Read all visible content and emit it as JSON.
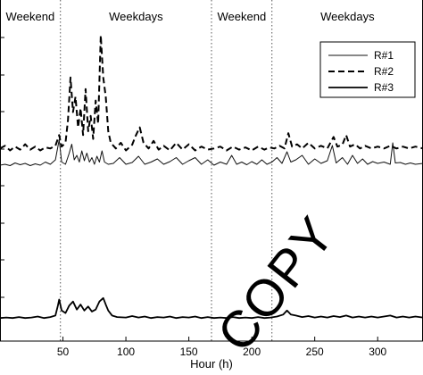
{
  "chart_data": {
    "type": "line",
    "title": "",
    "xlabel": "Hour (h)",
    "ylabel": "",
    "xlim": [
      0,
      336
    ],
    "xticks": [
      50,
      100,
      150,
      200,
      250,
      300
    ],
    "grid": false,
    "legend_position": "top-right",
    "period_boundaries": [
      48,
      168,
      216
    ],
    "period_labels": [
      {
        "text": "Weekend",
        "x_from": 0,
        "x_to": 48
      },
      {
        "text": "Weekdays",
        "x_from": 48,
        "x_to": 168
      },
      {
        "text": "Weekend",
        "x_from": 168,
        "x_to": 216
      },
      {
        "text": "Weekdays",
        "x_from": 216,
        "x_to": 336
      }
    ],
    "series": [
      {
        "name": "R#1",
        "style": "thin-solid",
        "points": [
          [
            0,
            0.28
          ],
          [
            4,
            0.3
          ],
          [
            8,
            0.27
          ],
          [
            12,
            0.33
          ],
          [
            16,
            0.29
          ],
          [
            20,
            0.32
          ],
          [
            24,
            0.27
          ],
          [
            28,
            0.31
          ],
          [
            32,
            0.28
          ],
          [
            36,
            0.35
          ],
          [
            40,
            0.3
          ],
          [
            44,
            0.4
          ],
          [
            47,
            0.85
          ],
          [
            49,
            0.35
          ],
          [
            52,
            0.3
          ],
          [
            55,
            0.55
          ],
          [
            57,
            0.75
          ],
          [
            59,
            0.4
          ],
          [
            61,
            0.5
          ],
          [
            63,
            0.35
          ],
          [
            65,
            0.6
          ],
          [
            67,
            0.38
          ],
          [
            69,
            0.55
          ],
          [
            71,
            0.35
          ],
          [
            73,
            0.45
          ],
          [
            75,
            0.3
          ],
          [
            77,
            0.48
          ],
          [
            79,
            0.35
          ],
          [
            81,
            0.6
          ],
          [
            83,
            0.35
          ],
          [
            86,
            0.3
          ],
          [
            90,
            0.32
          ],
          [
            95,
            0.45
          ],
          [
            100,
            0.3
          ],
          [
            105,
            0.34
          ],
          [
            110,
            0.48
          ],
          [
            115,
            0.3
          ],
          [
            120,
            0.35
          ],
          [
            125,
            0.42
          ],
          [
            130,
            0.3
          ],
          [
            135,
            0.36
          ],
          [
            140,
            0.45
          ],
          [
            145,
            0.3
          ],
          [
            150,
            0.38
          ],
          [
            155,
            0.45
          ],
          [
            160,
            0.3
          ],
          [
            165,
            0.4
          ],
          [
            170,
            0.28
          ],
          [
            175,
            0.35
          ],
          [
            180,
            0.3
          ],
          [
            184,
            0.5
          ],
          [
            188,
            0.3
          ],
          [
            192,
            0.35
          ],
          [
            196,
            0.29
          ],
          [
            200,
            0.36
          ],
          [
            204,
            0.3
          ],
          [
            208,
            0.4
          ],
          [
            212,
            0.3
          ],
          [
            216,
            0.35
          ],
          [
            220,
            0.45
          ],
          [
            224,
            0.32
          ],
          [
            228,
            0.58
          ],
          [
            231,
            0.35
          ],
          [
            235,
            0.4
          ],
          [
            240,
            0.5
          ],
          [
            245,
            0.3
          ],
          [
            250,
            0.42
          ],
          [
            255,
            0.32
          ],
          [
            260,
            0.38
          ],
          [
            264,
            0.72
          ],
          [
            267,
            0.33
          ],
          [
            272,
            0.45
          ],
          [
            276,
            0.3
          ],
          [
            280,
            0.5
          ],
          [
            284,
            0.32
          ],
          [
            288,
            0.42
          ],
          [
            292,
            0.3
          ],
          [
            296,
            0.36
          ],
          [
            300,
            0.32
          ],
          [
            305,
            0.35
          ],
          [
            310,
            0.3
          ],
          [
            312,
            0.78
          ],
          [
            314,
            0.33
          ],
          [
            318,
            0.34
          ],
          [
            322,
            0.3
          ],
          [
            326,
            0.33
          ],
          [
            330,
            0.3
          ],
          [
            336,
            0.32
          ]
        ]
      },
      {
        "name": "R#2",
        "style": "dashed",
        "points": [
          [
            0,
            0.55
          ],
          [
            4,
            0.62
          ],
          [
            8,
            0.5
          ],
          [
            12,
            0.6
          ],
          [
            16,
            0.52
          ],
          [
            20,
            0.66
          ],
          [
            24,
            0.52
          ],
          [
            28,
            0.6
          ],
          [
            32,
            0.5
          ],
          [
            36,
            0.58
          ],
          [
            40,
            0.55
          ],
          [
            44,
            0.62
          ],
          [
            47,
            0.9
          ],
          [
            49,
            0.6
          ],
          [
            52,
            0.7
          ],
          [
            54,
            1.3
          ],
          [
            56,
            2.4
          ],
          [
            58,
            1.5
          ],
          [
            60,
            1.9
          ],
          [
            62,
            1.1
          ],
          [
            64,
            1.6
          ],
          [
            66,
            0.9
          ],
          [
            68,
            2.1
          ],
          [
            70,
            1.0
          ],
          [
            72,
            1.4
          ],
          [
            74,
            0.8
          ],
          [
            76,
            1.8
          ],
          [
            78,
            1.2
          ],
          [
            80,
            3.5
          ],
          [
            82,
            2.4
          ],
          [
            84,
            1.9
          ],
          [
            86,
            1.0
          ],
          [
            88,
            0.7
          ],
          [
            92,
            0.55
          ],
          [
            96,
            0.7
          ],
          [
            100,
            0.5
          ],
          [
            105,
            0.65
          ],
          [
            108,
            0.9
          ],
          [
            111,
            1.1
          ],
          [
            114,
            0.7
          ],
          [
            118,
            0.55
          ],
          [
            122,
            0.75
          ],
          [
            126,
            0.52
          ],
          [
            130,
            0.62
          ],
          [
            135,
            0.5
          ],
          [
            140,
            0.7
          ],
          [
            145,
            0.52
          ],
          [
            150,
            0.66
          ],
          [
            155,
            0.5
          ],
          [
            160,
            0.6
          ],
          [
            165,
            0.52
          ],
          [
            170,
            0.55
          ],
          [
            175,
            0.6
          ],
          [
            180,
            0.5
          ],
          [
            185,
            0.6
          ],
          [
            190,
            0.52
          ],
          [
            195,
            0.58
          ],
          [
            200,
            0.5
          ],
          [
            205,
            0.6
          ],
          [
            210,
            0.52
          ],
          [
            214,
            0.58
          ],
          [
            218,
            0.55
          ],
          [
            222,
            0.62
          ],
          [
            226,
            0.55
          ],
          [
            229,
            0.95
          ],
          [
            232,
            0.6
          ],
          [
            236,
            0.66
          ],
          [
            240,
            0.55
          ],
          [
            245,
            0.7
          ],
          [
            250,
            0.55
          ],
          [
            255,
            0.62
          ],
          [
            260,
            0.55
          ],
          [
            265,
            0.85
          ],
          [
            268,
            0.6
          ],
          [
            272,
            0.65
          ],
          [
            275,
            0.9
          ],
          [
            278,
            0.6
          ],
          [
            282,
            0.66
          ],
          [
            286,
            0.55
          ],
          [
            290,
            0.62
          ],
          [
            295,
            0.55
          ],
          [
            300,
            0.6
          ],
          [
            305,
            0.55
          ],
          [
            310,
            0.62
          ],
          [
            315,
            0.55
          ],
          [
            320,
            0.6
          ],
          [
            325,
            0.55
          ],
          [
            330,
            0.6
          ],
          [
            336,
            0.55
          ]
        ]
      },
      {
        "name": "R#3",
        "style": "thick-solid",
        "points": [
          [
            0,
            0.05
          ],
          [
            5,
            0.06
          ],
          [
            10,
            0.05
          ],
          [
            15,
            0.07
          ],
          [
            20,
            0.05
          ],
          [
            25,
            0.06
          ],
          [
            30,
            0.08
          ],
          [
            35,
            0.05
          ],
          [
            40,
            0.07
          ],
          [
            44,
            0.1
          ],
          [
            46,
            0.3
          ],
          [
            47,
            0.42
          ],
          [
            49,
            0.2
          ],
          [
            52,
            0.15
          ],
          [
            55,
            0.3
          ],
          [
            58,
            0.38
          ],
          [
            61,
            0.22
          ],
          [
            64,
            0.32
          ],
          [
            67,
            0.2
          ],
          [
            70,
            0.28
          ],
          [
            73,
            0.18
          ],
          [
            76,
            0.22
          ],
          [
            79,
            0.38
          ],
          [
            82,
            0.45
          ],
          [
            84,
            0.32
          ],
          [
            86,
            0.2
          ],
          [
            89,
            0.1
          ],
          [
            93,
            0.07
          ],
          [
            100,
            0.06
          ],
          [
            105,
            0.09
          ],
          [
            110,
            0.06
          ],
          [
            115,
            0.08
          ],
          [
            120,
            0.05
          ],
          [
            125,
            0.07
          ],
          [
            130,
            0.06
          ],
          [
            135,
            0.08
          ],
          [
            140,
            0.05
          ],
          [
            145,
            0.07
          ],
          [
            150,
            0.06
          ],
          [
            155,
            0.08
          ],
          [
            160,
            0.05
          ],
          [
            165,
            0.07
          ],
          [
            170,
            0.05
          ],
          [
            175,
            0.06
          ],
          [
            180,
            0.05
          ],
          [
            185,
            0.07
          ],
          [
            190,
            0.05
          ],
          [
            195,
            0.06
          ],
          [
            200,
            0.05
          ],
          [
            205,
            0.07
          ],
          [
            210,
            0.05
          ],
          [
            215,
            0.06
          ],
          [
            220,
            0.08
          ],
          [
            225,
            0.12
          ],
          [
            228,
            0.2
          ],
          [
            231,
            0.12
          ],
          [
            235,
            0.1
          ],
          [
            240,
            0.07
          ],
          [
            245,
            0.09
          ],
          [
            250,
            0.06
          ],
          [
            255,
            0.08
          ],
          [
            260,
            0.06
          ],
          [
            265,
            0.09
          ],
          [
            270,
            0.07
          ],
          [
            275,
            0.1
          ],
          [
            280,
            0.06
          ],
          [
            285,
            0.08
          ],
          [
            290,
            0.06
          ],
          [
            295,
            0.08
          ],
          [
            300,
            0.06
          ],
          [
            305,
            0.08
          ],
          [
            310,
            0.1
          ],
          [
            315,
            0.06
          ],
          [
            320,
            0.08
          ],
          [
            325,
            0.06
          ],
          [
            330,
            0.08
          ],
          [
            336,
            0.06
          ]
        ]
      }
    ]
  },
  "watermark": {
    "text": "COPY"
  }
}
